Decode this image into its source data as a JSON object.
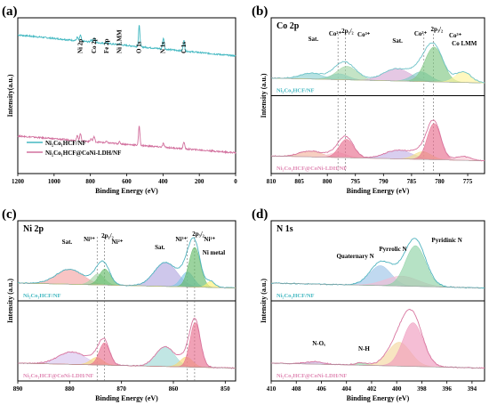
{
  "chart_data": [
    {
      "id": "a",
      "type": "line",
      "panel_label": "(a)",
      "xlabel": "Binding Energy (eV)",
      "ylabel": "Intensity(a.u.)",
      "xlim": [
        1200,
        0
      ],
      "xticks": [
        "1200",
        "1000",
        "800",
        "600",
        "400",
        "200",
        "0"
      ],
      "annotations": [
        {
          "text": "Ni 2p",
          "x": 855
        },
        {
          "text": "Co 2p",
          "x": 780
        },
        {
          "text": "Fe 2p",
          "x": 711
        },
        {
          "text": "Ni LMM",
          "x": 640
        },
        {
          "text": "O 1s",
          "x": 531
        },
        {
          "text": "N 1s",
          "x": 398
        },
        {
          "text": "C 1s",
          "x": 285
        }
      ],
      "legend": [
        {
          "label": "Ni₂Co₁HCF/NF",
          "color": "#45b9c2"
        },
        {
          "label": "Ni₂Co₁HCF@CoNi-LDH/NF",
          "color": "#d2709e"
        }
      ],
      "series": [
        {
          "name": "Ni₂Co₁HCF/NF",
          "color": "#45b9c2",
          "baseline": 0.55,
          "slope": 0.35,
          "peaks": [
            [
              855,
              0.1
            ],
            [
              872,
              0.06
            ],
            [
              780,
              0.07
            ],
            [
              796,
              0.04
            ],
            [
              711,
              0.03
            ],
            [
              640,
              0.02
            ],
            [
              531,
              0.35
            ],
            [
              398,
              0.18
            ],
            [
              285,
              0.18
            ]
          ]
        },
        {
          "name": "Ni₂Co₁HCF@CoNi-LDH/NF",
          "color": "#d2709e",
          "baseline": 0.05,
          "slope": 0.28,
          "peaks": [
            [
              855,
              0.12
            ],
            [
              872,
              0.08
            ],
            [
              780,
              0.09
            ],
            [
              796,
              0.05
            ],
            [
              711,
              0.02
            ],
            [
              640,
              0.03
            ],
            [
              531,
              0.32
            ],
            [
              398,
              0.06
            ],
            [
              285,
              0.12
            ]
          ]
        }
      ]
    },
    {
      "id": "b",
      "type": "line",
      "panel_label": "(b)",
      "title": "Co 2p",
      "xlabel": "Binding Energy (eV)",
      "ylabel": "Intensity (a.u.)",
      "xlim": [
        810,
        772
      ],
      "xticks": [
        "810",
        "805",
        "800",
        "795",
        "790",
        "785",
        "780",
        "775"
      ],
      "dashed_lines": [
        798.1,
        796.8,
        782.8,
        781.1
      ],
      "annotations": [
        {
          "text": "Sat.",
          "x": 802.5
        },
        {
          "text": "Co²⁺",
          "x": 798.6
        },
        {
          "text": "2p₁/₂",
          "x": 796.4
        },
        {
          "text": "Co³⁺",
          "x": 793.5
        },
        {
          "text": "Sat.",
          "x": 787.5
        },
        {
          "text": "Co²⁺",
          "x": 783.4
        },
        {
          "text": "2p₃/₂",
          "x": 780.5
        },
        {
          "text": "Co³⁺",
          "x": 777.2
        },
        {
          "text": "Co LMM",
          "x": 775.6
        }
      ],
      "subplots": [
        {
          "label": "Ni₂Co₁HCF/NF",
          "label_color": "#45b9c2",
          "line_color": "#6fc3c8",
          "components": [
            {
              "center": 802.8,
              "height": 0.12,
              "width": 2.0,
              "color": "#8fd3d2"
            },
            {
              "center": 797.9,
              "height": 0.12,
              "width": 1.6,
              "color": "#6ec8d8"
            },
            {
              "center": 796.5,
              "height": 0.28,
              "width": 1.8,
              "color": "#a5d6a7"
            },
            {
              "center": 787.6,
              "height": 0.25,
              "width": 2.4,
              "color": "#d7aad5"
            },
            {
              "center": 783.3,
              "height": 0.2,
              "width": 1.6,
              "color": "#80cbc4"
            },
            {
              "center": 781.0,
              "height": 0.72,
              "width": 1.6,
              "color": "#81c784"
            },
            {
              "center": 775.8,
              "height": 0.22,
              "width": 1.4,
              "color": "#fff59d"
            }
          ]
        },
        {
          "label": "Ni₂Co₁HCF@CoNi-LDH/NF",
          "label_color": "#e089b4",
          "line_color": "#d8759f",
          "components": [
            {
              "center": 803.0,
              "height": 0.12,
              "width": 2.0,
              "color": "#f3b6a0"
            },
            {
              "center": 798.2,
              "height": 0.1,
              "width": 1.6,
              "color": "#f8c9d6"
            },
            {
              "center": 796.6,
              "height": 0.38,
              "width": 1.3,
              "color": "#e86f8f"
            },
            {
              "center": 787.3,
              "height": 0.18,
              "width": 2.4,
              "color": "#c5b3e6"
            },
            {
              "center": 783.0,
              "height": 0.16,
              "width": 1.5,
              "color": "#f2e08a"
            },
            {
              "center": 781.0,
              "height": 0.75,
              "width": 1.2,
              "color": "#e86f8f"
            },
            {
              "center": 775.8,
              "height": 0.08,
              "width": 1.4,
              "color": "#f8c9d6"
            }
          ]
        }
      ]
    },
    {
      "id": "c",
      "type": "line",
      "panel_label": "(c)",
      "title": "Ni 2p",
      "xlabel": "Binding Energy (eV)",
      "ylabel": "Intensity (a.u.)",
      "xlim": [
        890,
        848
      ],
      "xticks": [
        "890",
        "880",
        "870",
        "860",
        "850"
      ],
      "dashed_lines": [
        874.7,
        873.3,
        857.3,
        855.9
      ],
      "annotations": [
        {
          "text": "Sat.",
          "x": 880.5
        },
        {
          "text": "Ni³⁺",
          "x": 876.2
        },
        {
          "text": "2p₁/₂",
          "x": 872.7
        },
        {
          "text": "Ni²⁺",
          "x": 870.8
        },
        {
          "text": "Sat.",
          "x": 862.6
        },
        {
          "text": "Ni³⁺",
          "x": 858.5
        },
        {
          "text": "2p₃/₂",
          "x": 855.2
        },
        {
          "text": "Ni²⁺",
          "x": 853.0
        },
        {
          "text": "Ni metal",
          "x": 852.2
        }
      ],
      "subplots": [
        {
          "label": "Ni₂Co₁HCF/NF",
          "label_color": "#45b9c2",
          "line_color": "#4fb3bf",
          "components": [
            {
              "center": 880.0,
              "height": 0.3,
              "width": 2.6,
              "color": "#f4a5a5"
            },
            {
              "center": 874.5,
              "height": 0.22,
              "width": 1.2,
              "color": "#a5d6a7"
            },
            {
              "center": 873.2,
              "height": 0.32,
              "width": 1.1,
              "color": "#66bb6a"
            },
            {
              "center": 861.5,
              "height": 0.48,
              "width": 2.2,
              "color": "#b3a9e0"
            },
            {
              "center": 857.3,
              "height": 0.3,
              "width": 1.2,
              "color": "#7fc6e6"
            },
            {
              "center": 855.9,
              "height": 0.8,
              "width": 1.1,
              "color": "#66bb6a"
            },
            {
              "center": 852.8,
              "height": 0.12,
              "width": 0.8,
              "color": "#fff176"
            }
          ]
        },
        {
          "label": "Ni₂Co₁HCF@CoNi-LDH/NF",
          "label_color": "#e089b4",
          "line_color": "#d8759f",
          "components": [
            {
              "center": 879.6,
              "height": 0.25,
              "width": 2.6,
              "color": "#d8c5ee"
            },
            {
              "center": 874.8,
              "height": 0.15,
              "width": 1.2,
              "color": "#f9d976"
            },
            {
              "center": 873.3,
              "height": 0.45,
              "width": 1.0,
              "color": "#e86f8f"
            },
            {
              "center": 861.6,
              "height": 0.4,
              "width": 1.8,
              "color": "#9fd8d6"
            },
            {
              "center": 857.5,
              "height": 0.2,
              "width": 1.2,
              "color": "#f9d976"
            },
            {
              "center": 855.8,
              "height": 0.9,
              "width": 1.0,
              "color": "#e86f8f"
            }
          ]
        }
      ]
    },
    {
      "id": "d",
      "type": "line",
      "panel_label": "(d)",
      "title": "N 1s",
      "xlabel": "Binding Energy (eV)",
      "ylabel": "Intensity (a.u.)",
      "xlim": [
        410,
        393
      ],
      "xticks": [
        "410",
        "408",
        "406",
        "404",
        "402",
        "400",
        "398",
        "396",
        "394"
      ],
      "annotations": [
        {
          "text": "Quaternary N",
          "x": 403.3
        },
        {
          "text": "Pyrrolic N",
          "x": 400.3
        },
        {
          "text": "Pyridinic N",
          "x": 396.0
        },
        {
          "text": "N-Oₓ",
          "x": 406.2
        },
        {
          "text": "N-H",
          "x": 402.6
        }
      ],
      "subplots": [
        {
          "label": "Ni₂Co₁HCF/NF",
          "label_color": "#45b9c2",
          "line_color": "#4fb3bf",
          "components": [
            {
              "center": 401.3,
              "height": 0.4,
              "width": 0.85,
              "color": "#9ec4e8"
            },
            {
              "center": 399.6,
              "height": 0.2,
              "width": 1.3,
              "color": "#f3bcd2"
            },
            {
              "center": 398.5,
              "height": 0.82,
              "width": 0.8,
              "color": "#8fd3a6"
            }
          ]
        },
        {
          "label": "Ni₂Co₁HCF@CoNi-LDH/NF",
          "label_color": "#e089b4",
          "line_color": "#d8759f",
          "components": [
            {
              "center": 406.5,
              "height": 0.05,
              "width": 0.7,
              "color": "#c5b3e6"
            },
            {
              "center": 402.8,
              "height": 0.05,
              "width": 0.5,
              "color": "#8fd3a6"
            },
            {
              "center": 399.8,
              "height": 0.48,
              "width": 0.9,
              "color": "#f5d7a0"
            },
            {
              "center": 398.7,
              "height": 0.88,
              "width": 0.8,
              "color": "#ef9bbf"
            }
          ]
        }
      ]
    }
  ]
}
